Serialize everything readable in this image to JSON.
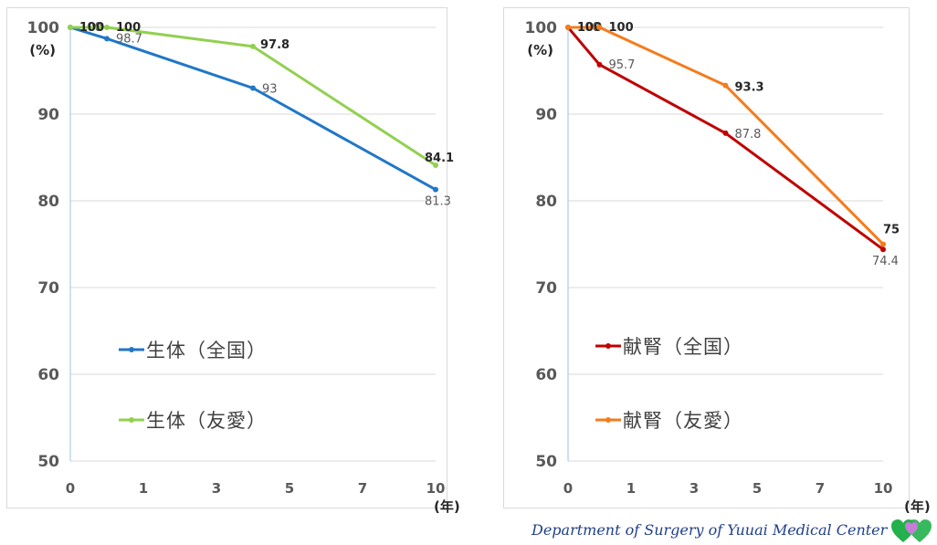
{
  "chart_data": [
    {
      "type": "line",
      "x": [
        0,
        1,
        5,
        10
      ],
      "x_ticks": [
        "0",
        "1",
        "3",
        "5",
        "7",
        "10"
      ],
      "y_ticks": [
        "100",
        "90",
        "80",
        "70",
        "60",
        "50"
      ],
      "ylim": [
        50,
        100
      ],
      "ylabel": "(%)",
      "xlabel": "(年)",
      "grid": true,
      "legend_position": "left-middle",
      "series": [
        {
          "name": "生体（全国）",
          "color": "#2077c7",
          "values": [
            100,
            98.7,
            93,
            81.3
          ],
          "labels": [
            "100",
            "98.7",
            "93",
            "81.3"
          ],
          "label_style": "normal"
        },
        {
          "name": "生体（友愛）",
          "color": "#92d050",
          "values": [
            100,
            100,
            97.8,
            84.1
          ],
          "labels": [
            "100",
            "100",
            "97.8",
            "84.1"
          ],
          "label_style": "bold"
        }
      ]
    },
    {
      "type": "line",
      "x": [
        0,
        1,
        5,
        10
      ],
      "x_ticks": [
        "0",
        "1",
        "3",
        "5",
        "7",
        "10"
      ],
      "y_ticks": [
        "100",
        "90",
        "80",
        "70",
        "60",
        "50"
      ],
      "ylim": [
        50,
        100
      ],
      "ylabel": "(%)",
      "xlabel": "(年)",
      "grid": true,
      "legend_position": "left-middle",
      "series": [
        {
          "name": "献腎（全国）",
          "color": "#c00000",
          "values": [
            100,
            95.7,
            87.8,
            74.4
          ],
          "labels": [
            "100",
            "95.7",
            "87.8",
            "74.4"
          ],
          "label_style": "normal"
        },
        {
          "name": "献腎（友愛）",
          "color": "#f47c1c",
          "values": [
            100,
            100,
            93.3,
            75
          ],
          "labels": [
            "100",
            "100",
            "93.3",
            "75"
          ],
          "label_style": "bold"
        }
      ]
    }
  ],
  "footer": {
    "text": "Department of Surgery of Yuuai Medical Center",
    "logo_icon": "heart-logo-icon"
  }
}
